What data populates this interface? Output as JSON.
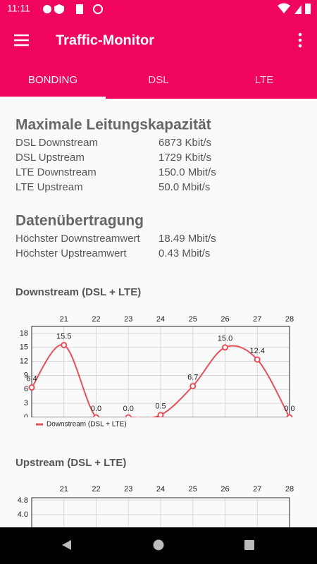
{
  "status_bar": {
    "time": "11:11"
  },
  "app_bar": {
    "title": "Traffic-Monitor"
  },
  "tabs": [
    "BONDING",
    "DSL",
    "LTE"
  ],
  "capacity": {
    "title": "Maximale Leitungskapazität",
    "rows": [
      [
        "DSL Downstream",
        "6873 Kbit/s"
      ],
      [
        "DSL Upstream",
        "1729 Kbit/s"
      ],
      [
        "LTE Downstream",
        "150.0 Mbit/s"
      ],
      [
        "LTE Upstream",
        "50.0 Mbit/s"
      ]
    ]
  },
  "transfer": {
    "title": "Datenübertragung",
    "rows": [
      [
        "Höchster Downstreamwert",
        "18.49 Mbit/s"
      ],
      [
        "Höchster Upstreamwert",
        "0.43 Mbit/s"
      ]
    ]
  },
  "chart_data": [
    {
      "type": "line",
      "title": "Downstream (DSL + LTE)",
      "x": [
        20,
        21,
        22,
        23,
        24,
        25,
        26,
        27,
        28
      ],
      "xlim": [
        20,
        28
      ],
      "xticks": [
        21,
        22,
        23,
        24,
        25,
        26,
        27,
        28
      ],
      "ylim": [
        0,
        19.5
      ],
      "yticks": [
        0,
        3,
        6,
        9,
        12,
        15,
        18
      ],
      "grid": true,
      "legend": "bottom-left",
      "series": [
        {
          "name": "Downstream (DSL + LTE)",
          "color": "#e8505b",
          "values": [
            6.4,
            15.5,
            0,
            0,
            0.5,
            6.7,
            15,
            12.4,
            0
          ],
          "value_labels": [
            "6.4",
            "15.5",
            "0.0",
            "0.0",
            "0.5",
            "6.7",
            "15.0",
            "12.4",
            "0.0"
          ]
        }
      ]
    },
    {
      "type": "line",
      "title": "Upstream (DSL + LTE)",
      "xlim": [
        20,
        28
      ],
      "xticks": [
        21,
        22,
        23,
        24,
        25,
        26,
        27,
        28
      ],
      "ylim": [
        0,
        5
      ],
      "yticks": [
        {
          "value": 4.8,
          "label": "4.8"
        },
        {
          "value": 4,
          "label": "4.0"
        }
      ],
      "grid": true
    }
  ]
}
